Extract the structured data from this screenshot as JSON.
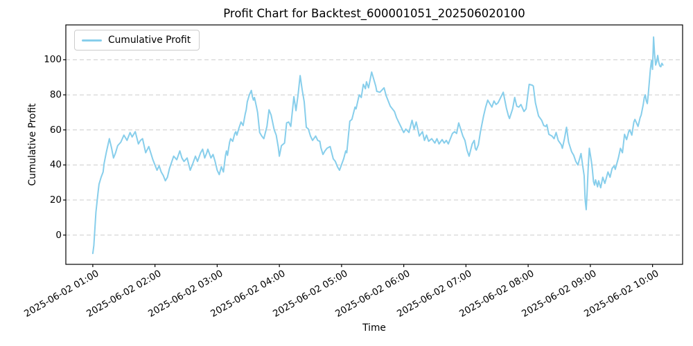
{
  "chart_data": {
    "type": "line",
    "title": "Profit Chart for Backtest_600001051_202506020100",
    "xlabel": "Time",
    "ylabel": "Cumulative Profit",
    "series_name": "Cumulative Profit",
    "legend_position": "upper left",
    "line_color": "#87CEEB",
    "grid": {
      "axis": "y",
      "style": "dashed",
      "color": "#cccccc"
    },
    "background_color": "#ffffff",
    "ylim": [
      -16.7,
      119.9
    ],
    "yticks": [
      0,
      20,
      40,
      60,
      80,
      100
    ],
    "x_unit": "minutes after 2025-06-02 01:00",
    "xlim": [
      -26,
      569
    ],
    "xticks": [
      {
        "t": 0,
        "label": "2025-06-02 01:00"
      },
      {
        "t": 60,
        "label": "2025-06-02 02:00"
      },
      {
        "t": 120,
        "label": "2025-06-02 03:00"
      },
      {
        "t": 180,
        "label": "2025-06-02 04:00"
      },
      {
        "t": 240,
        "label": "2025-06-02 05:00"
      },
      {
        "t": 300,
        "label": "2025-06-02 06:00"
      },
      {
        "t": 360,
        "label": "2025-06-02 07:00"
      },
      {
        "t": 420,
        "label": "2025-06-02 08:00"
      },
      {
        "t": 480,
        "label": "2025-06-02 09:00"
      },
      {
        "t": 540,
        "label": "2025-06-02 10:00"
      }
    ],
    "points": [
      [
        0,
        -10.5
      ],
      [
        1,
        -6
      ],
      [
        3,
        13
      ],
      [
        5,
        24
      ],
      [
        6,
        29
      ],
      [
        8,
        33
      ],
      [
        10,
        36
      ],
      [
        11,
        41
      ],
      [
        13,
        47
      ],
      [
        16,
        55
      ],
      [
        18,
        50
      ],
      [
        20,
        44
      ],
      [
        22,
        47
      ],
      [
        24,
        51
      ],
      [
        27,
        53
      ],
      [
        30,
        57
      ],
      [
        33,
        54
      ],
      [
        36,
        58.5
      ],
      [
        38,
        56
      ],
      [
        41,
        59
      ],
      [
        44,
        52
      ],
      [
        46,
        54
      ],
      [
        48,
        55
      ],
      [
        51,
        47
      ],
      [
        54,
        50.5
      ],
      [
        58,
        43
      ],
      [
        60,
        40
      ],
      [
        62,
        37
      ],
      [
        64,
        39.5
      ],
      [
        66,
        36
      ],
      [
        68,
        34
      ],
      [
        70,
        31
      ],
      [
        72,
        33
      ],
      [
        74,
        38
      ],
      [
        78,
        45
      ],
      [
        81,
        43
      ],
      [
        84,
        48
      ],
      [
        86,
        44
      ],
      [
        88,
        42
      ],
      [
        91,
        44
      ],
      [
        94,
        37
      ],
      [
        96,
        40
      ],
      [
        99,
        45
      ],
      [
        101,
        42
      ],
      [
        104,
        47
      ],
      [
        106,
        49
      ],
      [
        108,
        44
      ],
      [
        110,
        47
      ],
      [
        111,
        49
      ],
      [
        114,
        44
      ],
      [
        116,
        46
      ],
      [
        118,
        42
      ],
      [
        120,
        37
      ],
      [
        122,
        34.5
      ],
      [
        124,
        39
      ],
      [
        126,
        36
      ],
      [
        128,
        45.5
      ],
      [
        129,
        48
      ],
      [
        130,
        45.5
      ],
      [
        132,
        53
      ],
      [
        133,
        55
      ],
      [
        135,
        53.5
      ],
      [
        137,
        58
      ],
      [
        138,
        59
      ],
      [
        139,
        57
      ],
      [
        141,
        61
      ],
      [
        143,
        64.5
      ],
      [
        145,
        62.5
      ],
      [
        147,
        69
      ],
      [
        148,
        71.5
      ],
      [
        149,
        76
      ],
      [
        151,
        80
      ],
      [
        153,
        82.5
      ],
      [
        154,
        79
      ],
      [
        155,
        77
      ],
      [
        156,
        78.5
      ],
      [
        158,
        73
      ],
      [
        159,
        70
      ],
      [
        161,
        58.5
      ],
      [
        163,
        56.5
      ],
      [
        165,
        55
      ],
      [
        168,
        62
      ],
      [
        170,
        71.5
      ],
      [
        172,
        68.5
      ],
      [
        175,
        60
      ],
      [
        177,
        57
      ],
      [
        179,
        50
      ],
      [
        180,
        45
      ],
      [
        182,
        51
      ],
      [
        185,
        52.5
      ],
      [
        187,
        64
      ],
      [
        189,
        64.5
      ],
      [
        191,
        62
      ],
      [
        194,
        79
      ],
      [
        196,
        71
      ],
      [
        198,
        80
      ],
      [
        200,
        91
      ],
      [
        202,
        83
      ],
      [
        204,
        76
      ],
      [
        206,
        61.5
      ],
      [
        208,
        60.5
      ],
      [
        210,
        56.5
      ],
      [
        212,
        54
      ],
      [
        215,
        56.5
      ],
      [
        217,
        54
      ],
      [
        219,
        53.5
      ],
      [
        220,
        50
      ],
      [
        222,
        46
      ],
      [
        224,
        48
      ],
      [
        226,
        49.5
      ],
      [
        229,
        50.5
      ],
      [
        232,
        43.5
      ],
      [
        234,
        42
      ],
      [
        236,
        39
      ],
      [
        238,
        37
      ],
      [
        242,
        43.5
      ],
      [
        244,
        48
      ],
      [
        245,
        47
      ],
      [
        248,
        65
      ],
      [
        250,
        66
      ],
      [
        253,
        73
      ],
      [
        254,
        72
      ],
      [
        257,
        80
      ],
      [
        259,
        78.5
      ],
      [
        261,
        86
      ],
      [
        263,
        83.5
      ],
      [
        264,
        87.5
      ],
      [
        266,
        84
      ],
      [
        269,
        93
      ],
      [
        273,
        85
      ],
      [
        274,
        82
      ],
      [
        277,
        81.5
      ],
      [
        281,
        84
      ],
      [
        283,
        79.5
      ],
      [
        287,
        73.5
      ],
      [
        291,
        70.5
      ],
      [
        293,
        67
      ],
      [
        295,
        64.5
      ],
      [
        300,
        58.5
      ],
      [
        302,
        60.5
      ],
      [
        305,
        58.5
      ],
      [
        308,
        65.5
      ],
      [
        310,
        60.5
      ],
      [
        312,
        64.5
      ],
      [
        315,
        56.5
      ],
      [
        318,
        59
      ],
      [
        320,
        54
      ],
      [
        322,
        57
      ],
      [
        324,
        53.5
      ],
      [
        327,
        55
      ],
      [
        330,
        52.5
      ],
      [
        332,
        55
      ],
      [
        334,
        52
      ],
      [
        337,
        54.5
      ],
      [
        339,
        52.5
      ],
      [
        341,
        54
      ],
      [
        343,
        52
      ],
      [
        347,
        58
      ],
      [
        349,
        59
      ],
      [
        351,
        58
      ],
      [
        353,
        64
      ],
      [
        357,
        56.5
      ],
      [
        359,
        54
      ],
      [
        361,
        48.5
      ],
      [
        363,
        45
      ],
      [
        366,
        52
      ],
      [
        368,
        54
      ],
      [
        369,
        49.5
      ],
      [
        370,
        48.5
      ],
      [
        372,
        51.5
      ],
      [
        374,
        59
      ],
      [
        377,
        68
      ],
      [
        379,
        73
      ],
      [
        381,
        77
      ],
      [
        385,
        73
      ],
      [
        387,
        76.5
      ],
      [
        389,
        74.5
      ],
      [
        391,
        75.5
      ],
      [
        396,
        81.5
      ],
      [
        399,
        72.5
      ],
      [
        401,
        68
      ],
      [
        402,
        66.5
      ],
      [
        405,
        72
      ],
      [
        407,
        78.5
      ],
      [
        409,
        73.5
      ],
      [
        411,
        73
      ],
      [
        413,
        74.5
      ],
      [
        416,
        70.5
      ],
      [
        418,
        72
      ],
      [
        421,
        86
      ],
      [
        424,
        85.5
      ],
      [
        425,
        85
      ],
      [
        427,
        75.5
      ],
      [
        430,
        68
      ],
      [
        433,
        65.5
      ],
      [
        435,
        62.5
      ],
      [
        437,
        62
      ],
      [
        438,
        63
      ],
      [
        440,
        57.5
      ],
      [
        443,
        56.5
      ],
      [
        445,
        55
      ],
      [
        447,
        58.5
      ],
      [
        449,
        54
      ],
      [
        452,
        51.5
      ],
      [
        453,
        49.5
      ],
      [
        455,
        55
      ],
      [
        457,
        61.5
      ],
      [
        459,
        53
      ],
      [
        462,
        47.5
      ],
      [
        464,
        45.5
      ],
      [
        466,
        42
      ],
      [
        468,
        40
      ],
      [
        471,
        46.5
      ],
      [
        473,
        38
      ],
      [
        474,
        34
      ],
      [
        475,
        20
      ],
      [
        476,
        14.5
      ],
      [
        477,
        26
      ],
      [
        478,
        39.5
      ],
      [
        479,
        49.5
      ],
      [
        481,
        42
      ],
      [
        482,
        37
      ],
      [
        483,
        30.5
      ],
      [
        484,
        28.5
      ],
      [
        485,
        31.5
      ],
      [
        487,
        27.5
      ],
      [
        488,
        31
      ],
      [
        490,
        27
      ],
      [
        492,
        33
      ],
      [
        494,
        29.5
      ],
      [
        497,
        36
      ],
      [
        499,
        33
      ],
      [
        501,
        38
      ],
      [
        503,
        39.5
      ],
      [
        504,
        37.5
      ],
      [
        507,
        44
      ],
      [
        509,
        49.5
      ],
      [
        511,
        47
      ],
      [
        513,
        57.5
      ],
      [
        515,
        54.5
      ],
      [
        517,
        59
      ],
      [
        518,
        60
      ],
      [
        520,
        57
      ],
      [
        522,
        64.5
      ],
      [
        523,
        66
      ],
      [
        526,
        62
      ],
      [
        528,
        67
      ],
      [
        529,
        68.5
      ],
      [
        531,
        74.5
      ],
      [
        532,
        78.5
      ],
      [
        533,
        80
      ],
      [
        534,
        76.5
      ],
      [
        535,
        75
      ],
      [
        536,
        81
      ],
      [
        537,
        88
      ],
      [
        538,
        95
      ],
      [
        539,
        99.5
      ],
      [
        540,
        94.5
      ],
      [
        541,
        113
      ],
      [
        542,
        103
      ],
      [
        543,
        97
      ],
      [
        544,
        99
      ],
      [
        545,
        102.5
      ],
      [
        546,
        98.5
      ],
      [
        547,
        96.5
      ],
      [
        548,
        96
      ],
      [
        549,
        98
      ],
      [
        550,
        97
      ]
    ]
  }
}
